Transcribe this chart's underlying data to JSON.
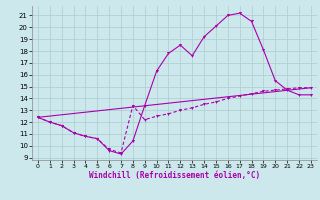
{
  "xlabel": "Windchill (Refroidissement éolien,°C)",
  "bg_color": "#cce8ec",
  "grid_color": "#aacccc",
  "line_color": "#aa00aa",
  "xlim": [
    -0.5,
    23.5
  ],
  "ylim": [
    8.8,
    21.8
  ],
  "yticks": [
    9,
    10,
    11,
    12,
    13,
    14,
    15,
    16,
    17,
    18,
    19,
    20,
    21
  ],
  "xticks": [
    0,
    1,
    2,
    3,
    4,
    5,
    6,
    7,
    8,
    9,
    10,
    11,
    12,
    13,
    14,
    15,
    16,
    17,
    18,
    19,
    20,
    21,
    22,
    23
  ],
  "line1_x": [
    0,
    1,
    2,
    3,
    4,
    5,
    6,
    7,
    8,
    9,
    10,
    11,
    12,
    13,
    14,
    15,
    16,
    17,
    18,
    19,
    20,
    21,
    22,
    23
  ],
  "line1_y": [
    12.4,
    12.0,
    11.7,
    11.1,
    10.8,
    10.6,
    9.6,
    9.3,
    10.4,
    13.4,
    16.3,
    17.8,
    18.5,
    17.6,
    19.2,
    20.1,
    21.0,
    21.2,
    20.5,
    18.1,
    15.5,
    14.7,
    14.3,
    14.3
  ],
  "line2_x": [
    0,
    1,
    2,
    3,
    4,
    5,
    6,
    7,
    8,
    9,
    10,
    11,
    12,
    13,
    14,
    15,
    16,
    17,
    18,
    19,
    20,
    21,
    22,
    23
  ],
  "line2_y": [
    12.4,
    12.0,
    11.7,
    11.1,
    10.8,
    10.6,
    9.7,
    9.4,
    13.4,
    12.2,
    12.5,
    12.7,
    13.0,
    13.2,
    13.5,
    13.7,
    14.0,
    14.2,
    14.4,
    14.6,
    14.7,
    14.8,
    14.9,
    14.9
  ],
  "line3_x": [
    0,
    23
  ],
  "line3_y": [
    12.4,
    14.9
  ]
}
